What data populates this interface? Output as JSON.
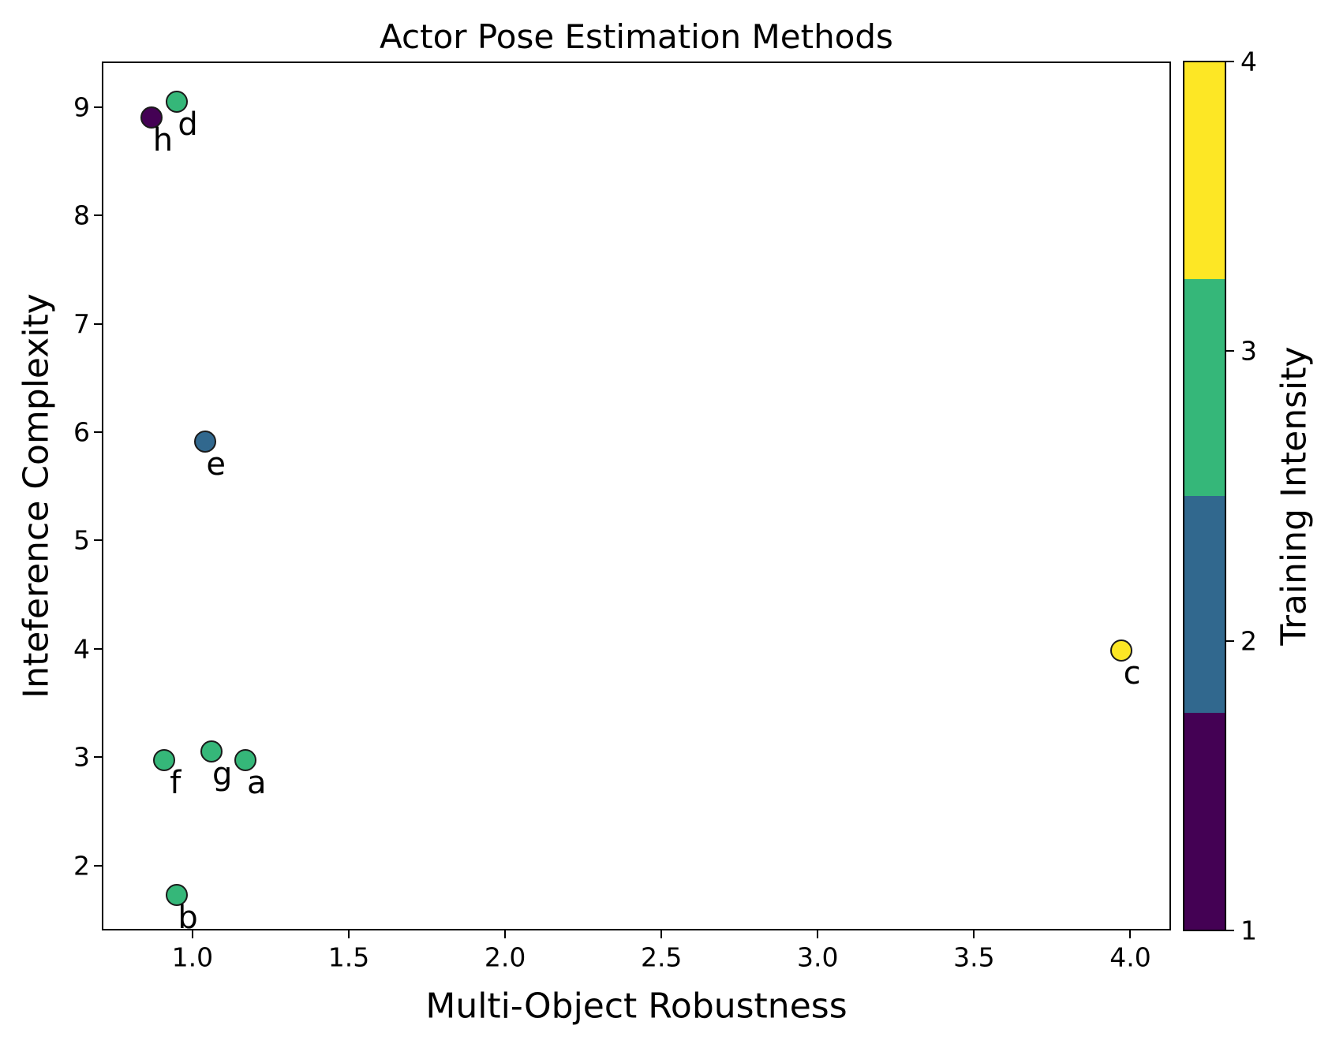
{
  "chart_data": {
    "type": "scatter",
    "title": "Actor Pose Estimation Methods",
    "xlabel": "Multi-Object Robustness",
    "ylabel": "Inteference Complexity",
    "grid": false,
    "xlim": [
      0.71,
      4.13
    ],
    "ylim": [
      1.4,
      9.42
    ],
    "xtick_values": [
      1.0,
      1.5,
      2.0,
      2.5,
      3.0,
      3.5,
      4.0
    ],
    "xtick_labels": [
      "1.0",
      "1.5",
      "2.0",
      "2.5",
      "3.0",
      "3.5",
      "4.0"
    ],
    "ytick_values": [
      2,
      3,
      4,
      5,
      6,
      7,
      8,
      9
    ],
    "ytick_labels": [
      "2",
      "3",
      "4",
      "5",
      "6",
      "7",
      "8",
      "9"
    ],
    "points": [
      {
        "label": "a",
        "x": 1.17,
        "y": 2.97,
        "intensity": 3,
        "color": "#35b779"
      },
      {
        "label": "b",
        "x": 0.95,
        "y": 1.73,
        "intensity": 3,
        "color": "#35b779"
      },
      {
        "label": "c",
        "x": 3.97,
        "y": 3.98,
        "intensity": 4,
        "color": "#fde725"
      },
      {
        "label": "d",
        "x": 0.95,
        "y": 9.05,
        "intensity": 3,
        "color": "#35b779"
      },
      {
        "label": "e",
        "x": 1.04,
        "y": 5.91,
        "intensity": 2,
        "color": "#31688e"
      },
      {
        "label": "f",
        "x": 0.91,
        "y": 2.97,
        "intensity": 3,
        "color": "#35b779"
      },
      {
        "label": "g",
        "x": 1.06,
        "y": 3.05,
        "intensity": 3,
        "color": "#35b779"
      },
      {
        "label": "h",
        "x": 0.87,
        "y": 8.9,
        "intensity": 1,
        "color": "#440154"
      }
    ],
    "colorbar": {
      "label": "Training Intensity",
      "vmin": 1,
      "vmax": 4,
      "tick_values": [
        1,
        2,
        3,
        4
      ],
      "tick_labels": [
        "1",
        "2",
        "3",
        "4"
      ],
      "segment_colors_bottom_to_top": [
        "#440154",
        "#31688e",
        "#35b779",
        "#fde725"
      ]
    }
  }
}
